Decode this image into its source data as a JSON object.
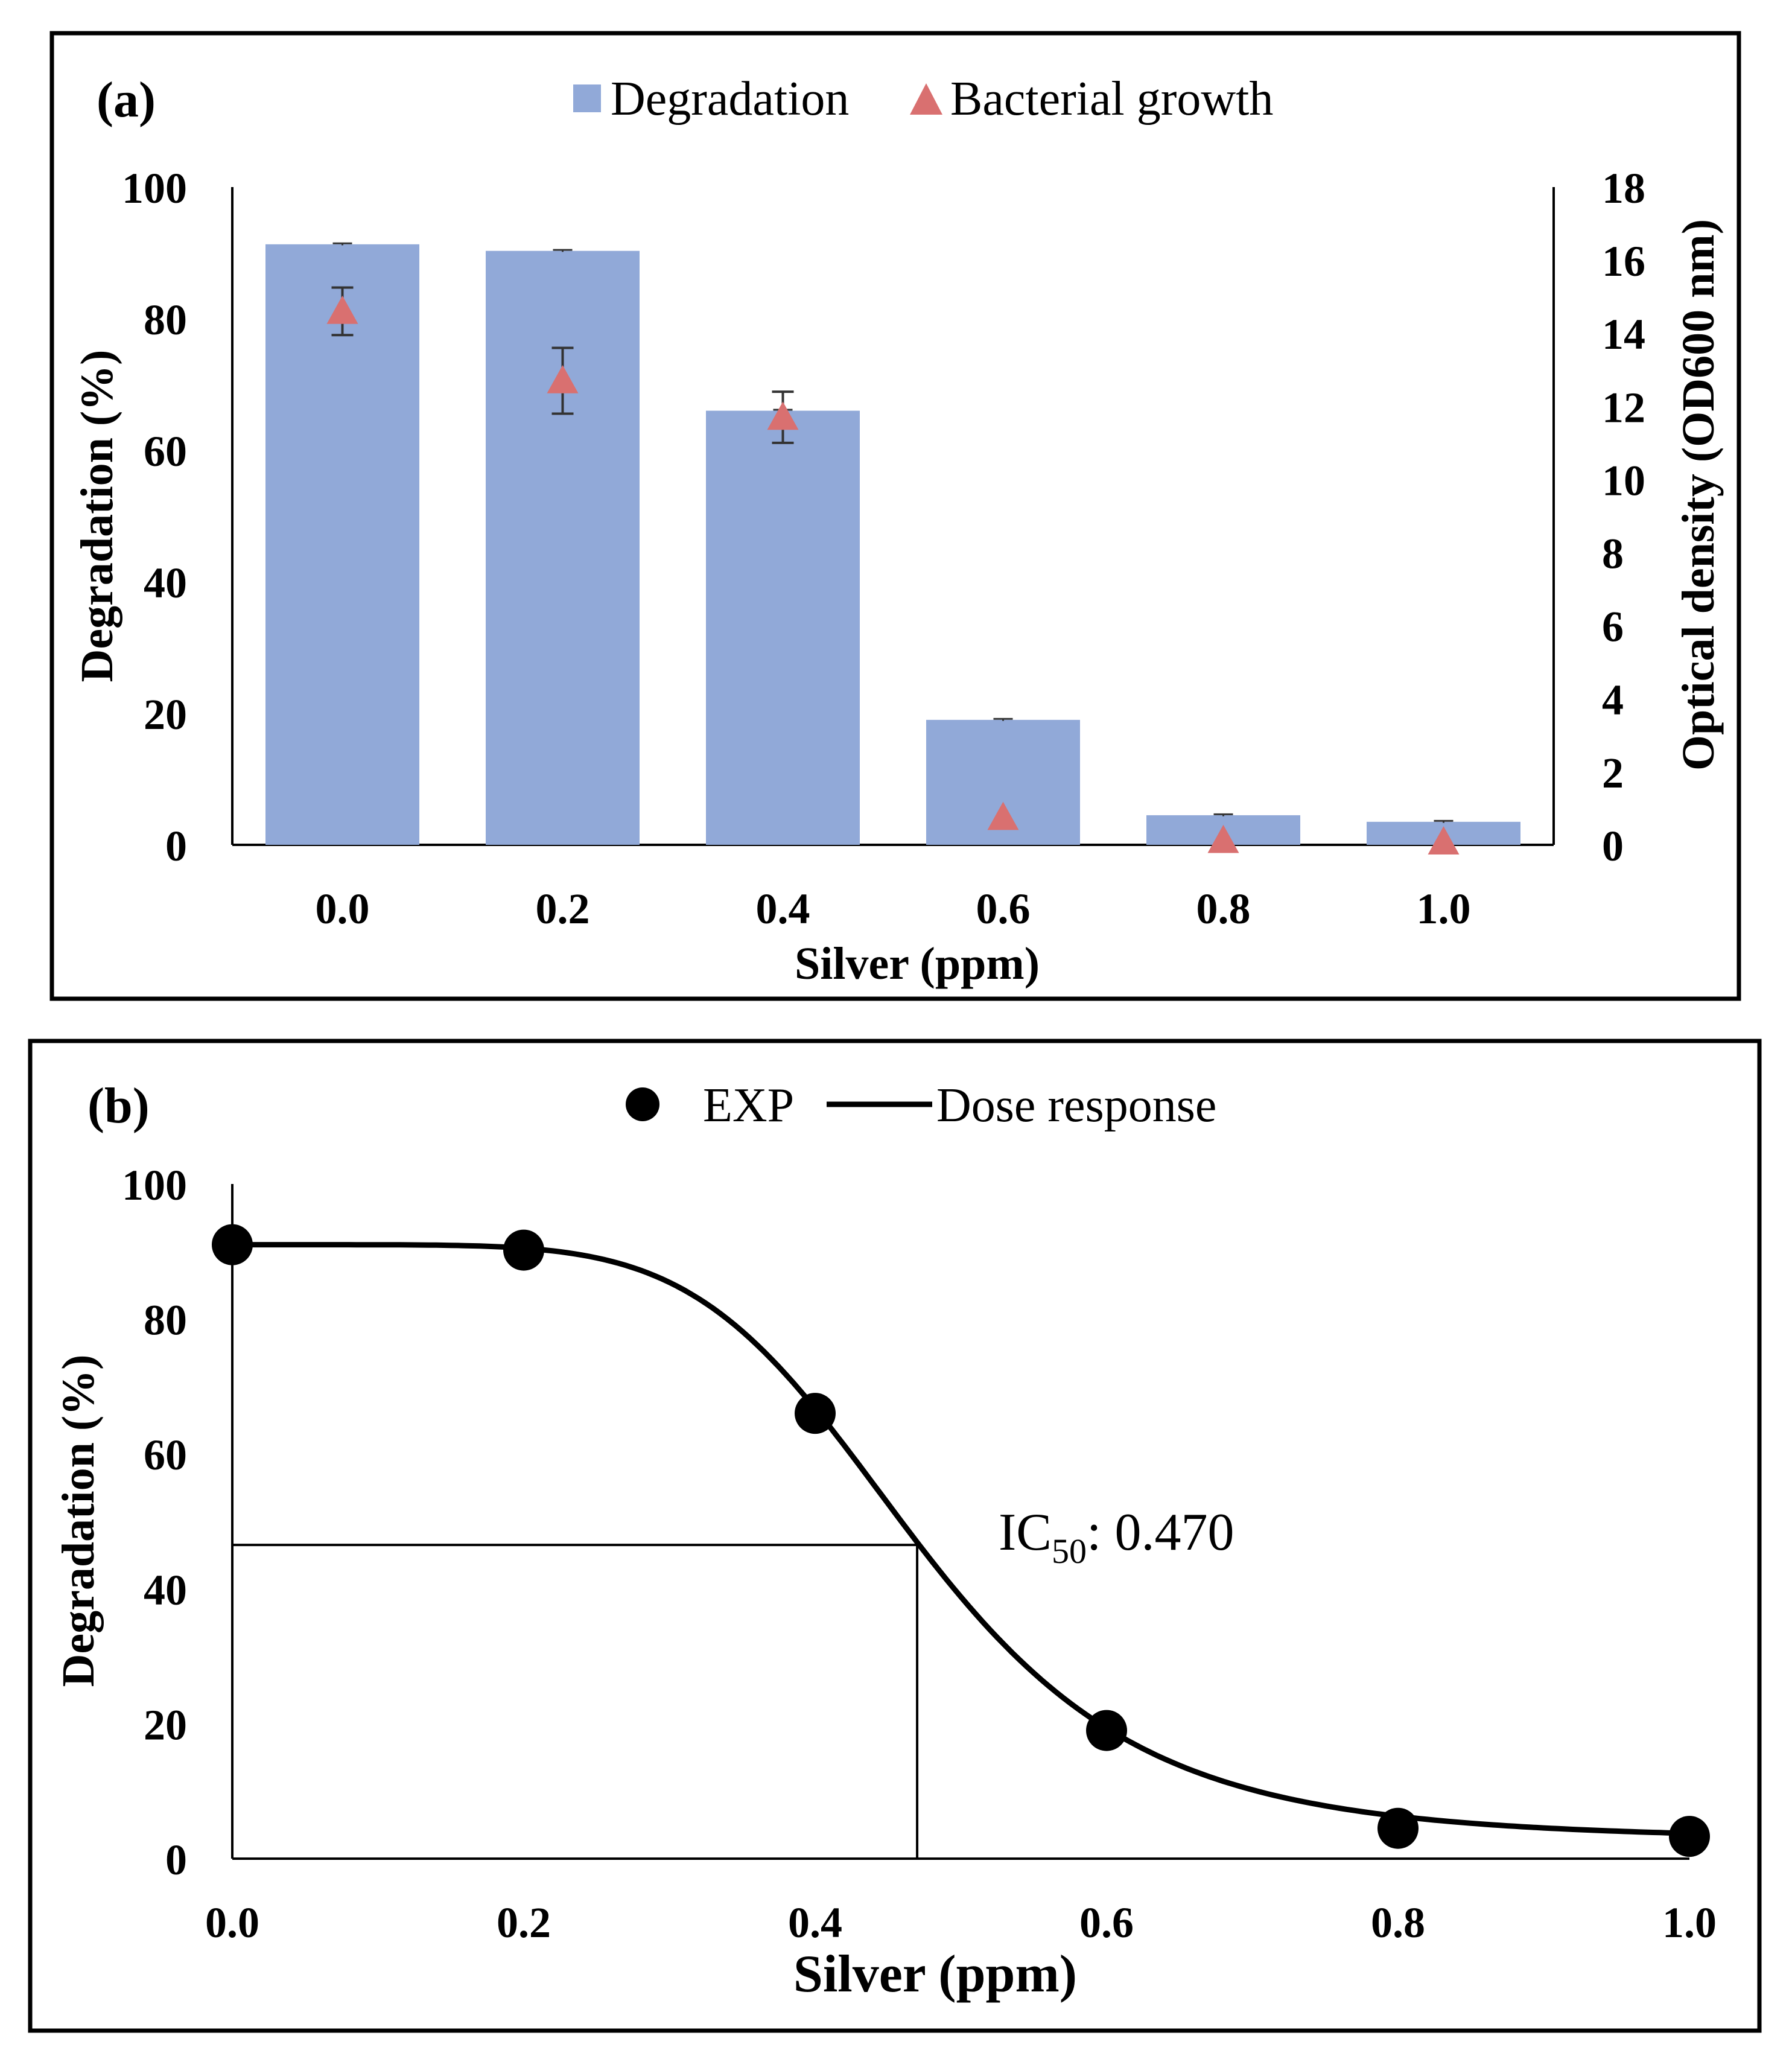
{
  "chart_data": [
    {
      "type": "bar",
      "panel_label": "(a)",
      "categories": [
        "0.0",
        "0.2",
        "0.4",
        "0.6",
        "0.8",
        "1.0"
      ],
      "series": [
        {
          "name": "Degradation",
          "kind": "bar",
          "axis": "left",
          "color": "#91a9d8",
          "values": [
            91.3,
            90.3,
            66.0,
            19.0,
            4.5,
            3.5
          ],
          "errors": [
            0.15,
            0.15,
            0.15,
            0.15,
            0.15,
            0.15
          ]
        },
        {
          "name": "Bacterial growth",
          "kind": "triangle-marker",
          "axis": "right",
          "color": "#d97070",
          "values": [
            14.6,
            12.7,
            11.7,
            0.75,
            0.12,
            0.08
          ],
          "errors": [
            0.65,
            0.9,
            0.7,
            0.0,
            0.0,
            0.0
          ]
        }
      ],
      "xlabel": "Silver (ppm)",
      "ylabel": "Degradation (%)",
      "y2label": "Optical density (OD600 nm)",
      "ylim": [
        0,
        100
      ],
      "y2lim": [
        0,
        18
      ],
      "yticks": [
        "0",
        "20",
        "40",
        "60",
        "80",
        "100"
      ],
      "y2ticks": [
        "0",
        "2",
        "4",
        "6",
        "8",
        "10",
        "12",
        "14",
        "16",
        "18"
      ],
      "legend_position": "top-center",
      "grid": false
    },
    {
      "type": "scatter",
      "panel_label": "(b)",
      "series": [
        {
          "name": "EXP",
          "kind": "marker",
          "color": "#000000",
          "x": [
            0.0,
            0.2,
            0.4,
            0.6,
            0.8,
            1.0
          ],
          "y": [
            91.0,
            90.2,
            66.0,
            19.0,
            4.5,
            3.3
          ]
        },
        {
          "name": "Dose response",
          "kind": "line",
          "color": "#000000",
          "model": {
            "top": 91.0,
            "bottom": 2.8,
            "ic50": 0.47,
            "hill": 6.0
          }
        }
      ],
      "ic50_line": {
        "x": 0.47,
        "y": 46.5
      },
      "annotation": {
        "prefix": "IC",
        "subscript": "50",
        "suffix": ": 0.470"
      },
      "xlabel": "Silver (ppm)",
      "ylabel": "Degradation (%)",
      "xlim": [
        0,
        1
      ],
      "ylim": [
        0,
        100
      ],
      "xticks": [
        "0.0",
        "0.2",
        "0.4",
        "0.6",
        "0.8",
        "1.0"
      ],
      "yticks": [
        "0",
        "20",
        "40",
        "60",
        "80",
        "100"
      ],
      "legend_position": "top-center",
      "grid": false
    }
  ]
}
